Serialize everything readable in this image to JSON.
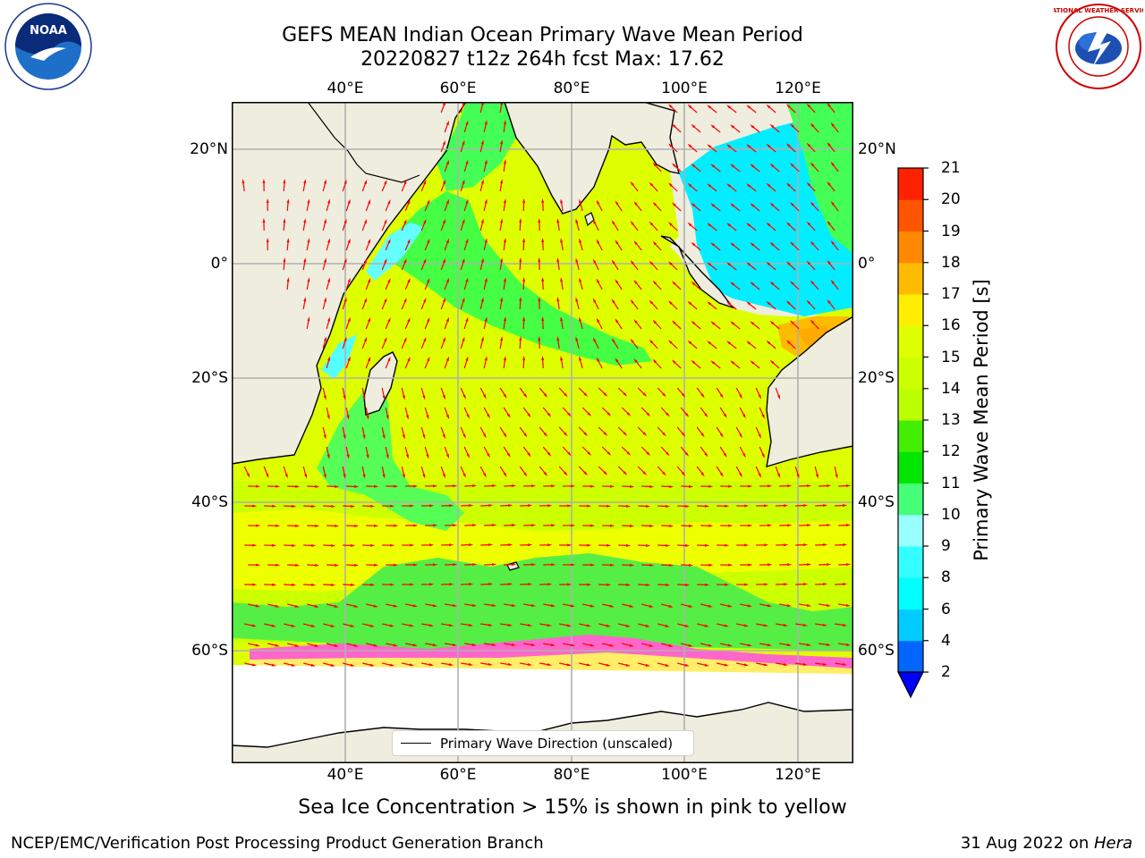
{
  "header": {
    "title_line1": "GEFS MEAN Indian Ocean Primary Wave Mean Period",
    "title_line2": "20220827 t12z 264h fcst   Max: 17.62"
  },
  "logos": {
    "left": {
      "name": "noaa-logo",
      "text": "NOAA"
    },
    "right": {
      "name": "nws-logo",
      "text": "NATIONAL WEATHER SERVICE"
    }
  },
  "map": {
    "projection": "lat-lon",
    "lon_range": [
      20,
      130
    ],
    "lat_range": [
      -75,
      28
    ],
    "gridlines": true,
    "land_color": "#efedde",
    "ocean_field": "Primary Wave Mean Period",
    "arrow_color": "#ff0000",
    "lon_ticks": [
      "40°E",
      "60°E",
      "80°E",
      "100°E",
      "120°E"
    ],
    "lat_ticks_left": [
      "20°N",
      "0°",
      "20°S",
      "40°S",
      "60°S"
    ],
    "lat_ticks_right": [
      "20°N",
      "0°",
      "20°S",
      "40°S",
      "60°S"
    ]
  },
  "colorbar": {
    "label": "Primary Wave Mean Period [s]",
    "tick_labels": [
      "2",
      "4",
      "6",
      "8",
      "9",
      "10",
      "11",
      "12",
      "13",
      "14",
      "15",
      "16",
      "17",
      "18",
      "19",
      "20",
      "21"
    ],
    "colors": [
      "#0066ff",
      "#00ccff",
      "#00ffff",
      "#33ffff",
      "#99ffff",
      "#44ff77",
      "#00e600",
      "#44ee00",
      "#bbff00",
      "#ccff00",
      "#ddff00",
      "#ffee00",
      "#ffbb00",
      "#ff8800",
      "#ff5500",
      "#ff2200"
    ],
    "under_color": "#0000ff",
    "extend": "min"
  },
  "legend": {
    "label": "Primary Wave Direction (unscaled)"
  },
  "subtitle": "Sea Ice Concentration > 15% is shown in pink to yellow",
  "footer": {
    "left": "NCEP/EMC/Verification Post Processing Product Generation Branch",
    "right_prefix": "31 Aug 2022 on ",
    "right_machine": "Hera"
  }
}
